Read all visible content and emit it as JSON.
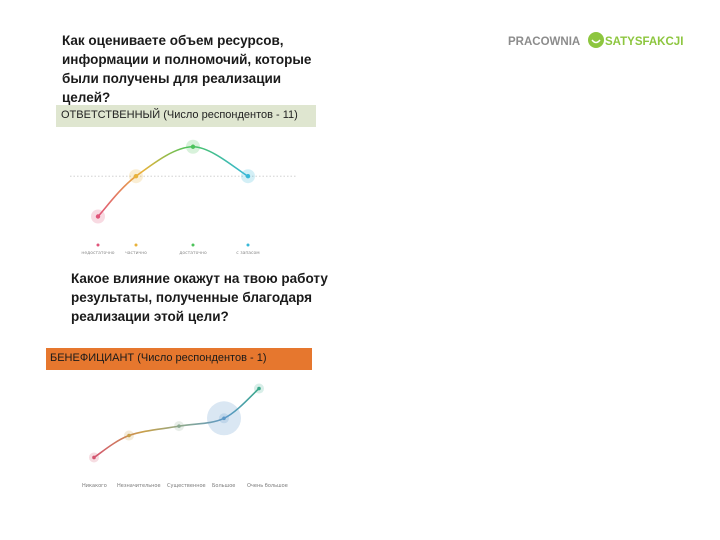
{
  "logo": {
    "part1": "PRACOWNIA",
    "part2": "SATYSFAKCJI",
    "brand_gray": "#8c8c8c",
    "brand_green": "#8dc63f"
  },
  "section1": {
    "question": "Как оцениваете объем ресурсов, информации и полномочий, которые были получены для реализации целей?",
    "respondent_label": "ОТВЕТСТВЕННЫЙ (Число респондентов - 11)",
    "bar_color": "#dfe6d0"
  },
  "section2": {
    "question": "Какое влияние окажут на твою работу результаты, полученные благодаря реализации этой цели?",
    "respondent_label": "БЕНЕФИЦИАНТ (Число респондентов - 1)",
    "bar_color": "#e6772e"
  },
  "chart_data": [
    {
      "type": "line",
      "categories": [
        "недостаточно",
        "частично",
        "достаточно",
        "с запасом"
      ],
      "values": [
        10,
        36,
        55,
        36
      ],
      "ylim": [
        0,
        60
      ],
      "point_labels": [
        "",
        "",
        "",
        ""
      ],
      "colors": [
        "#e0557a",
        "#e8b23a",
        "#4cc35a",
        "#38b8d8"
      ],
      "grid_line": true
    },
    {
      "type": "line",
      "categories": [
        "Никакого",
        "Незначительное",
        "Существенное",
        "Большое",
        "Очень большое"
      ],
      "values": [
        8,
        22,
        28,
        33,
        52
      ],
      "ylim": [
        0,
        60
      ],
      "point_labels": [
        "",
        "",
        "",
        "",
        ""
      ],
      "colors": [
        "#d45570",
        "#c8a04a",
        "#8aa890",
        "#5c98c8",
        "#3aa88a"
      ],
      "highlight_index": 3
    }
  ]
}
